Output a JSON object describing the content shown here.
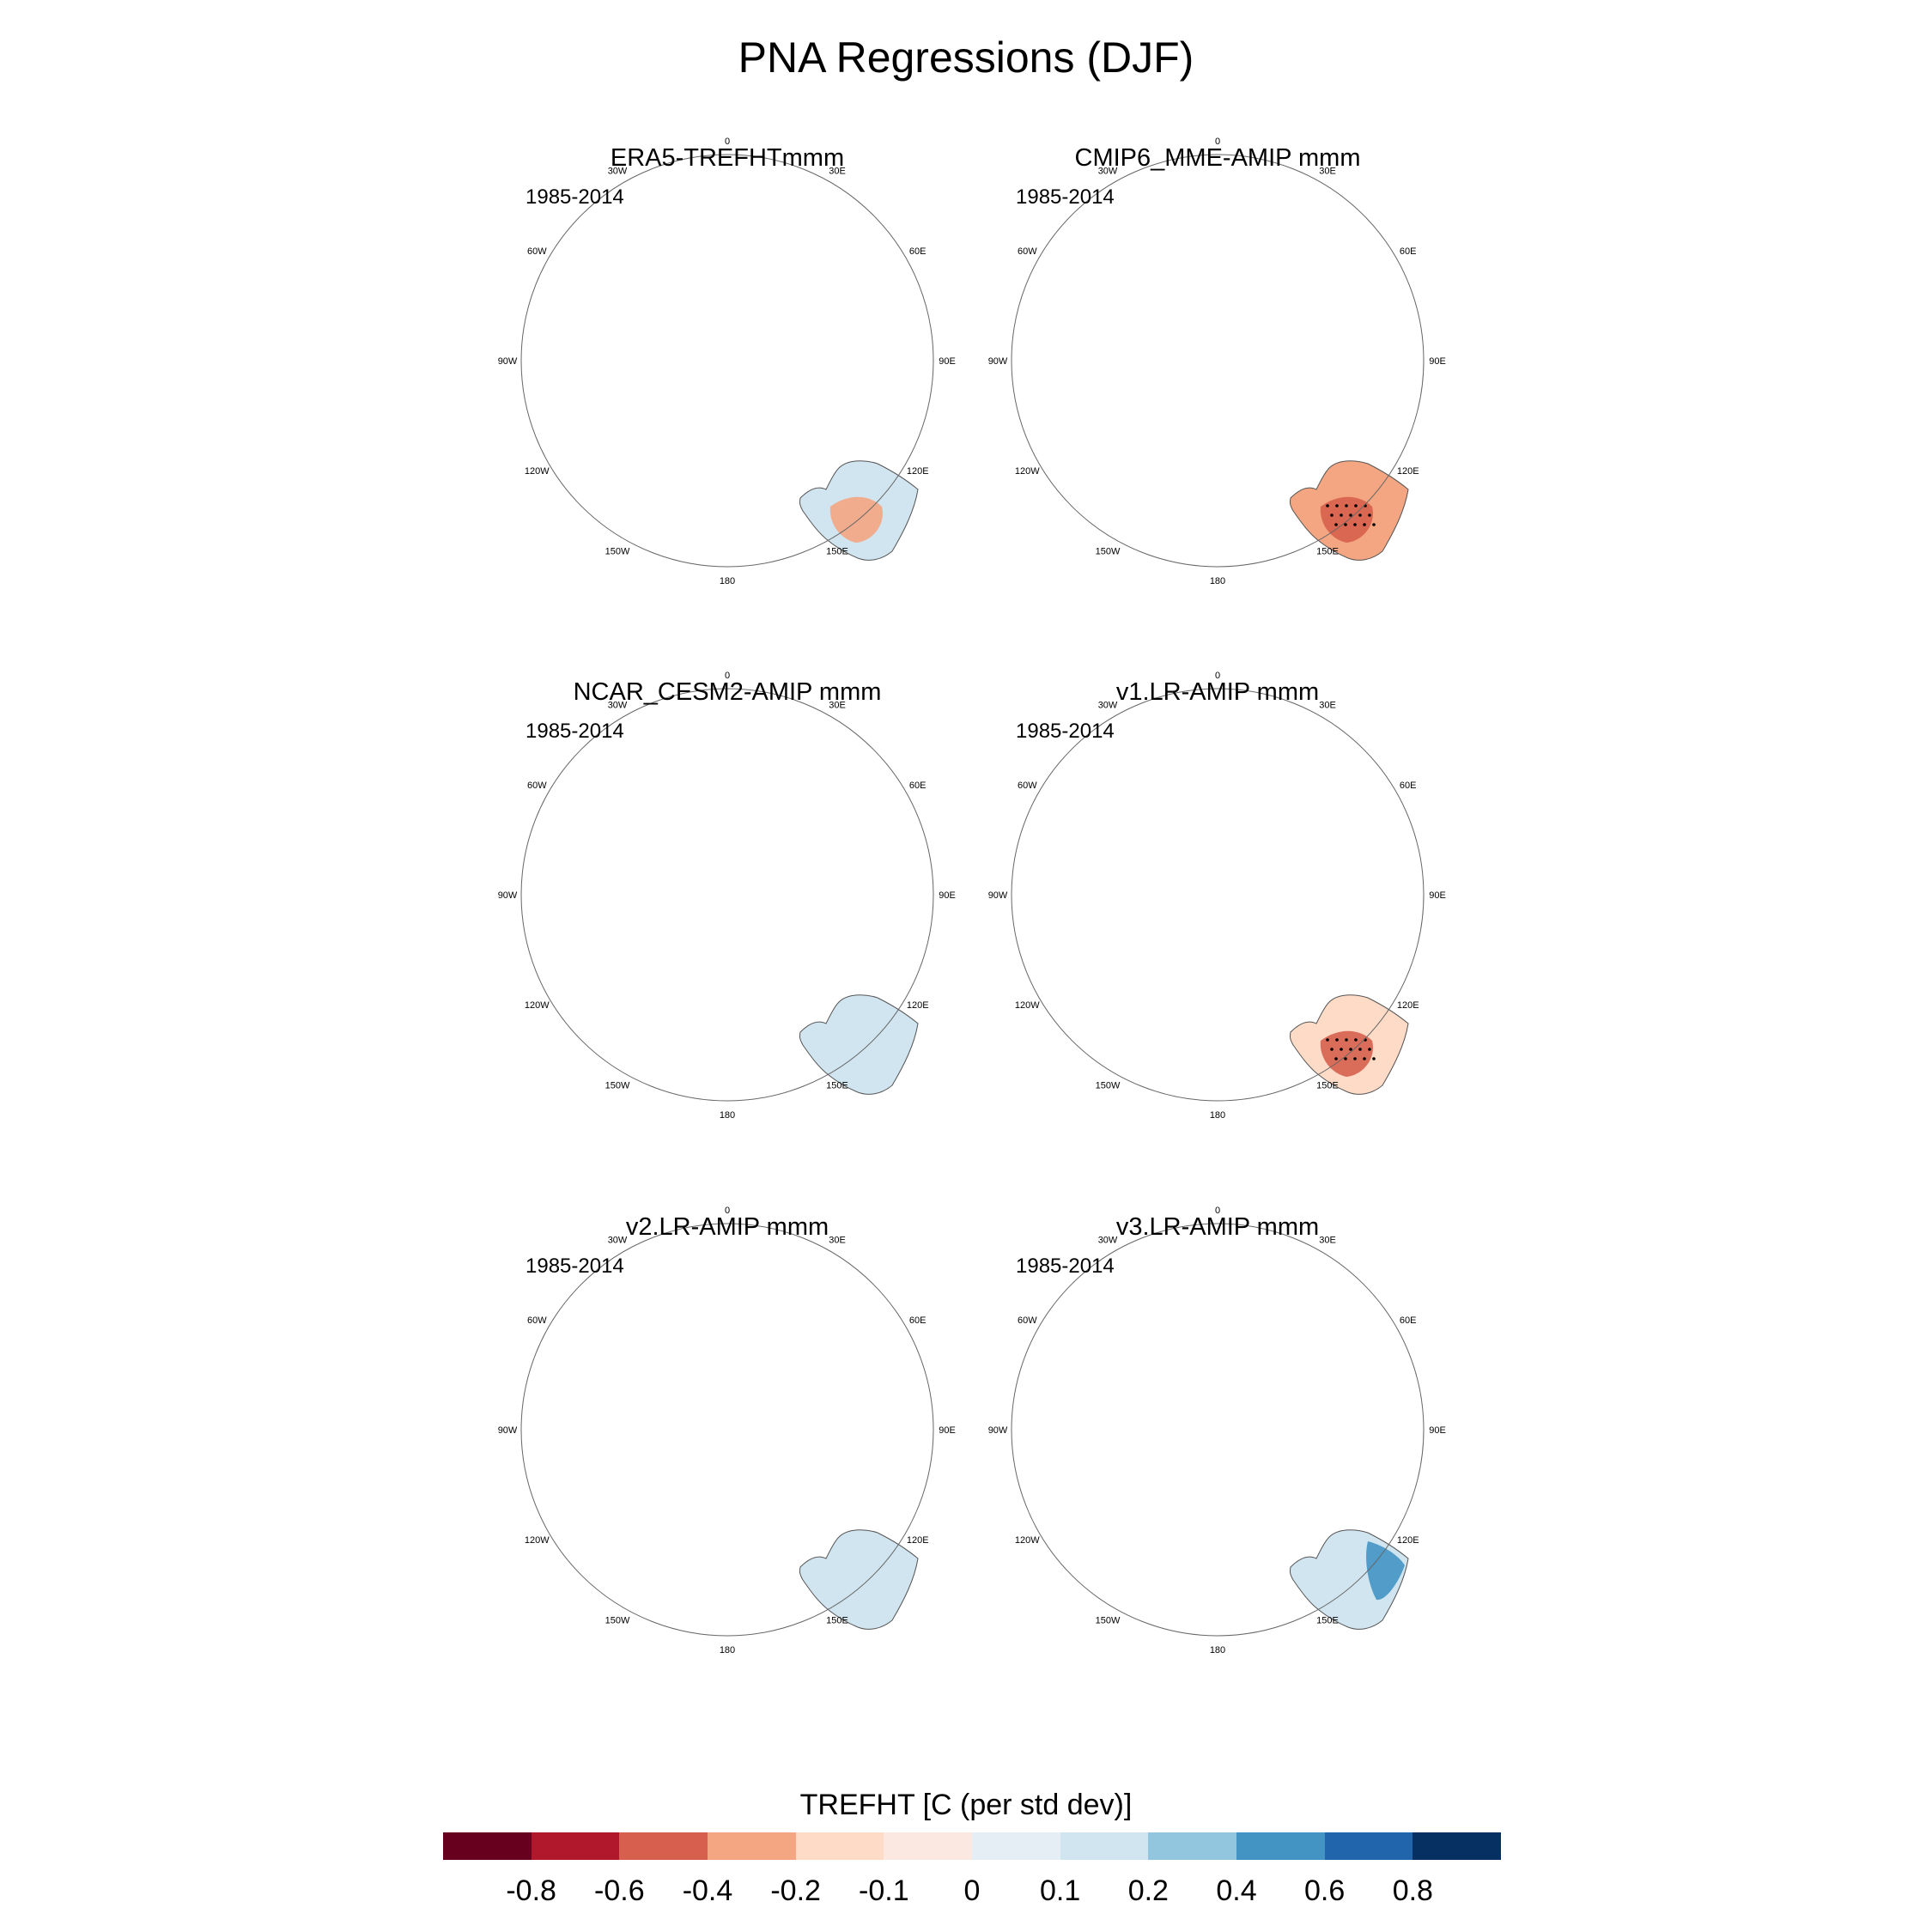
{
  "title": "PNA Regressions (DJF)",
  "panels": [
    {
      "id": "era5",
      "title": "ERA5-TREFHTmmm",
      "period": "1985-2014"
    },
    {
      "id": "cmip6",
      "title": "CMIP6_MME-AMIP  mmm",
      "period": "1985-2014"
    },
    {
      "id": "cesm2",
      "title": "NCAR_CESM2-AMIP  mmm",
      "period": "1985-2014"
    },
    {
      "id": "v1",
      "title": "v1.LR-AMIP  mmm",
      "period": "1985-2014"
    },
    {
      "id": "v2",
      "title": "v2.LR-AMIP  mmm",
      "period": "1985-2014"
    },
    {
      "id": "v3",
      "title": "v3.LR-AMIP  mmm",
      "period": "1985-2014"
    }
  ],
  "longitude_labels": [
    "0",
    "30E",
    "60E",
    "90E",
    "120E",
    "150E",
    "180",
    "150W",
    "120W",
    "90W",
    "60W",
    "30W"
  ],
  "colorbar": {
    "title": "TREFHT [C (per std dev)]",
    "colors": [
      "#67001f",
      "#b2182b",
      "#d6604d",
      "#f4a582",
      "#fddbc7",
      "#fbe9e1",
      "#e6eef5",
      "#d1e5f0",
      "#92c5de",
      "#4393c3",
      "#2166ac",
      "#053061"
    ],
    "tick_labels": [
      "-0.8",
      "-0.6",
      "-0.4",
      "-0.2",
      "-0.1",
      "0",
      "0.1",
      "0.2",
      "0.4",
      "0.6",
      "0.8"
    ]
  }
}
